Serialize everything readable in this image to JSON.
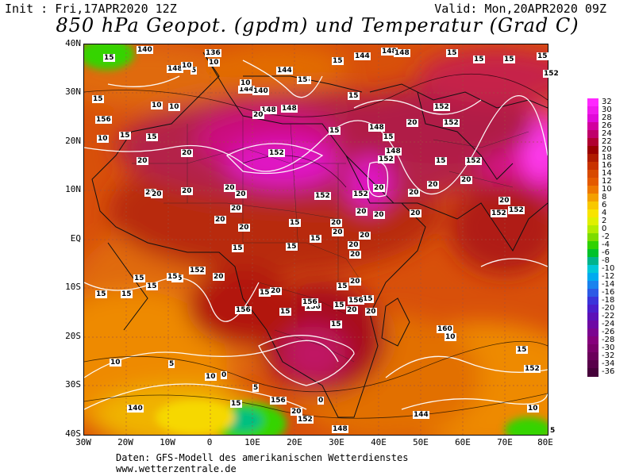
{
  "header": {
    "init": "Init : Fri,17APR2020 12Z",
    "valid": "Valid: Mon,20APR2020 09Z",
    "title": "850 hPa Geopot. (gpdm) und Temperatur (Grad C)"
  },
  "axes": {
    "lat_ticks": [
      "40N",
      "30N",
      "20N",
      "10N",
      "EQ",
      "10S",
      "20S",
      "30S",
      "40S"
    ],
    "lon_ticks": [
      "30W",
      "20W",
      "10W",
      "0",
      "10E",
      "20E",
      "30E",
      "40E",
      "50E",
      "60E",
      "70E",
      "80E"
    ]
  },
  "colorbar": {
    "labels": [
      "32",
      "30",
      "28",
      "26",
      "24",
      "22",
      "20",
      "18",
      "16",
      "14",
      "12",
      "10",
      "8",
      "6",
      "4",
      "2",
      "0",
      "-2",
      "-4",
      "-6",
      "-8",
      "-10",
      "-12",
      "-14",
      "-16",
      "-18",
      "-20",
      "-22",
      "-24",
      "-26",
      "-28",
      "-30",
      "-32",
      "-34",
      "-36"
    ],
    "colors": [
      "#ff28ff",
      "#f01aec",
      "#e00ad8",
      "#d2009e",
      "#c0006a",
      "#b10030",
      "#9a0000",
      "#b01c00",
      "#c83200",
      "#d84a00",
      "#e45a00",
      "#ee7800",
      "#f4a000",
      "#f8c800",
      "#f8e400",
      "#e0f000",
      "#b4ec00",
      "#7cdc00",
      "#30d200",
      "#00c22a",
      "#00b48c",
      "#00c8d8",
      "#00aaf0",
      "#1a82ee",
      "#2c5ae6",
      "#3a34da",
      "#4a1ecc",
      "#5c10b8",
      "#6e08a4",
      "#7c0490",
      "#86007c",
      "#7a006a",
      "#6a005a",
      "#58004a",
      "#46003a"
    ]
  },
  "map_labels": [
    {
      "t": "0"
    },
    {
      "t": "140"
    },
    {
      "t": "148"
    },
    {
      "t": "136"
    },
    {
      "t": "10"
    },
    {
      "t": "5"
    },
    {
      "t": "144"
    },
    {
      "t": "144"
    },
    {
      "t": "10"
    },
    {
      "t": "15"
    },
    {
      "t": "15"
    },
    {
      "t": "144"
    },
    {
      "t": "148"
    },
    {
      "t": "148"
    },
    {
      "t": "15"
    },
    {
      "t": "15"
    },
    {
      "t": "15"
    },
    {
      "t": "15"
    },
    {
      "t": "152"
    },
    {
      "t": "15"
    },
    {
      "t": "10"
    },
    {
      "t": "10"
    },
    {
      "t": "10"
    },
    {
      "t": "15"
    },
    {
      "t": "148"
    },
    {
      "t": "140"
    },
    {
      "t": "20"
    },
    {
      "t": "15"
    },
    {
      "t": "148"
    },
    {
      "t": "156"
    },
    {
      "t": "15"
    },
    {
      "t": "15"
    },
    {
      "t": "15"
    },
    {
      "t": "10"
    },
    {
      "t": "152"
    },
    {
      "t": "148"
    },
    {
      "t": "20"
    },
    {
      "t": "152"
    },
    {
      "t": "152"
    },
    {
      "t": "15"
    },
    {
      "t": "148"
    },
    {
      "t": "20"
    },
    {
      "t": "20"
    },
    {
      "t": "152"
    },
    {
      "t": "20"
    },
    {
      "t": "20"
    },
    {
      "t": "20"
    },
    {
      "t": "20"
    },
    {
      "t": "20"
    },
    {
      "t": "152"
    },
    {
      "t": "152"
    },
    {
      "t": "20"
    },
    {
      "t": "20"
    },
    {
      "t": "20"
    },
    {
      "t": "20"
    },
    {
      "t": "15"
    },
    {
      "t": "152"
    },
    {
      "t": "20"
    },
    {
      "t": "20"
    },
    {
      "t": "20"
    },
    {
      "t": "20"
    },
    {
      "t": "152"
    },
    {
      "t": "152"
    },
    {
      "t": "20"
    },
    {
      "t": "20"
    },
    {
      "t": "20"
    },
    {
      "t": "20"
    },
    {
      "t": "20"
    },
    {
      "t": "20"
    },
    {
      "t": "15"
    },
    {
      "t": "15"
    },
    {
      "t": "15"
    },
    {
      "t": "20"
    },
    {
      "t": "20"
    },
    {
      "t": "15"
    },
    {
      "t": "15"
    },
    {
      "t": "15"
    },
    {
      "t": "152"
    },
    {
      "t": "20"
    },
    {
      "t": "20"
    },
    {
      "t": "20"
    },
    {
      "t": "15"
    },
    {
      "t": "15"
    },
    {
      "t": "20"
    },
    {
      "t": "15"
    },
    {
      "t": "15"
    },
    {
      "t": "15"
    },
    {
      "t": "15"
    },
    {
      "t": "156"
    },
    {
      "t": "15"
    },
    {
      "t": "15"
    },
    {
      "t": "20"
    },
    {
      "t": "156"
    },
    {
      "t": "156"
    },
    {
      "t": "15"
    },
    {
      "t": "156"
    },
    {
      "t": "15"
    },
    {
      "t": "160"
    },
    {
      "t": "10"
    },
    {
      "t": "10"
    },
    {
      "t": "5"
    },
    {
      "t": "5"
    },
    {
      "t": "10"
    },
    {
      "t": "0"
    },
    {
      "t": "20"
    },
    {
      "t": "152"
    },
    {
      "t": "148"
    },
    {
      "t": "144"
    },
    {
      "t": "140"
    },
    {
      "t": "156"
    },
    {
      "t": "15"
    },
    {
      "t": "15"
    },
    {
      "t": "152"
    },
    {
      "t": "10"
    },
    {
      "t": "5"
    },
    {
      "t": "0"
    },
    {
      "t": "15"
    }
  ],
  "footer": {
    "line1": "Daten: GFS-Modell des amerikanischen Wetterdienstes",
    "line2": "www.wetterzentrale.de"
  }
}
